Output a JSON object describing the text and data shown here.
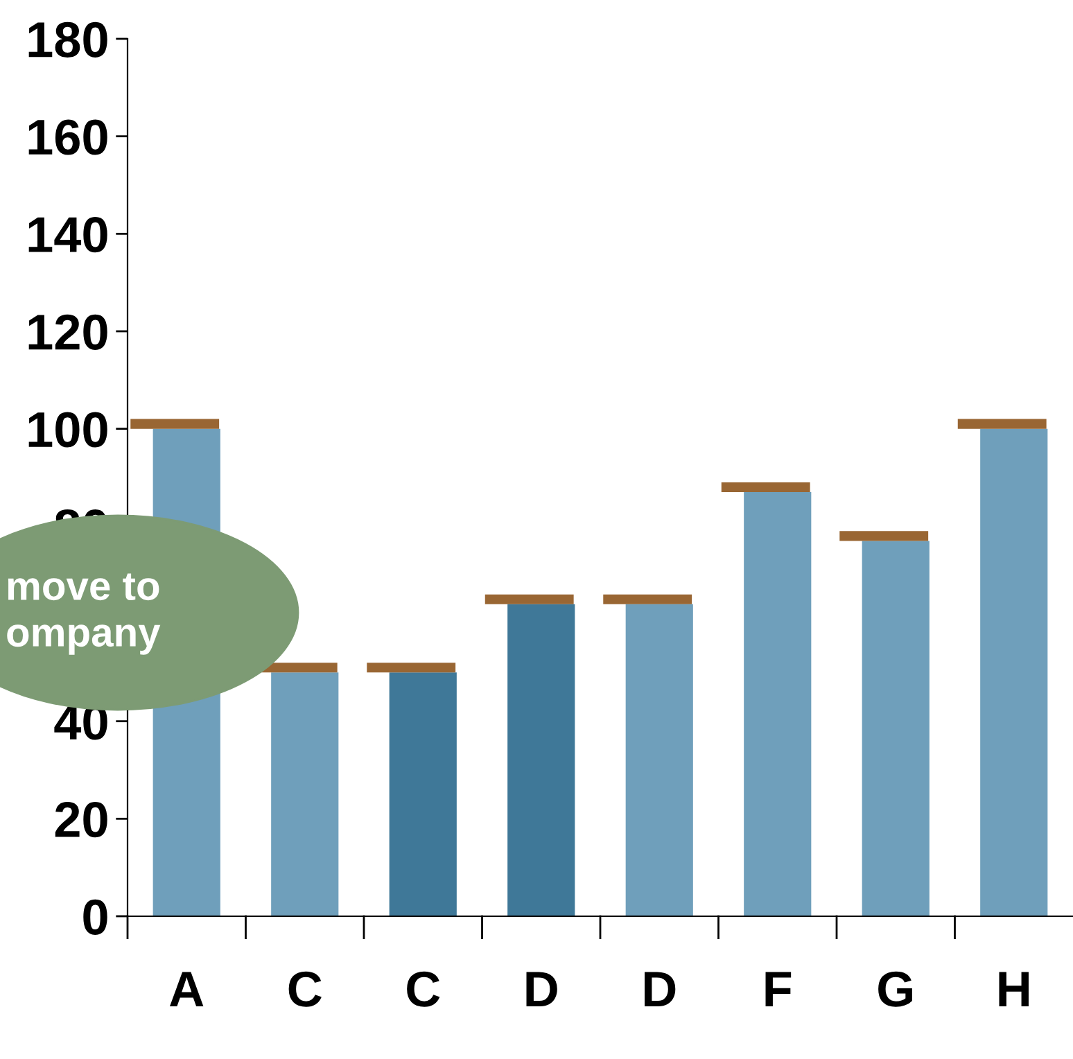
{
  "chart_data": {
    "type": "bar",
    "categories": [
      "A",
      "C",
      "C",
      "D",
      "D",
      "F",
      "G",
      "H"
    ],
    "series": [
      {
        "colors": [
          "#6f9fbb",
          "#6f9fbb",
          "#3f7898",
          "#3f7898",
          "#6f9fbb",
          "#6f9fbb",
          "#6f9fbb",
          "#6f9fbb"
        ],
        "values": [
          100,
          50,
          50,
          64,
          64,
          87,
          77,
          100
        ]
      },
      {
        "color": "#996633",
        "base": [
          100,
          50,
          50,
          64,
          64,
          87,
          77,
          100
        ],
        "values": [
          2,
          2,
          2,
          2,
          2,
          2,
          2,
          2
        ]
      }
    ],
    "ylim": [
      0,
      180
    ],
    "yticks": [
      0,
      20,
      40,
      {
        "value": 60,
        "label": null
      },
      80,
      100,
      120,
      140,
      160,
      180
    ],
    "grid": false,
    "legend": false,
    "annotations": [
      "move to\nompany"
    ]
  }
}
